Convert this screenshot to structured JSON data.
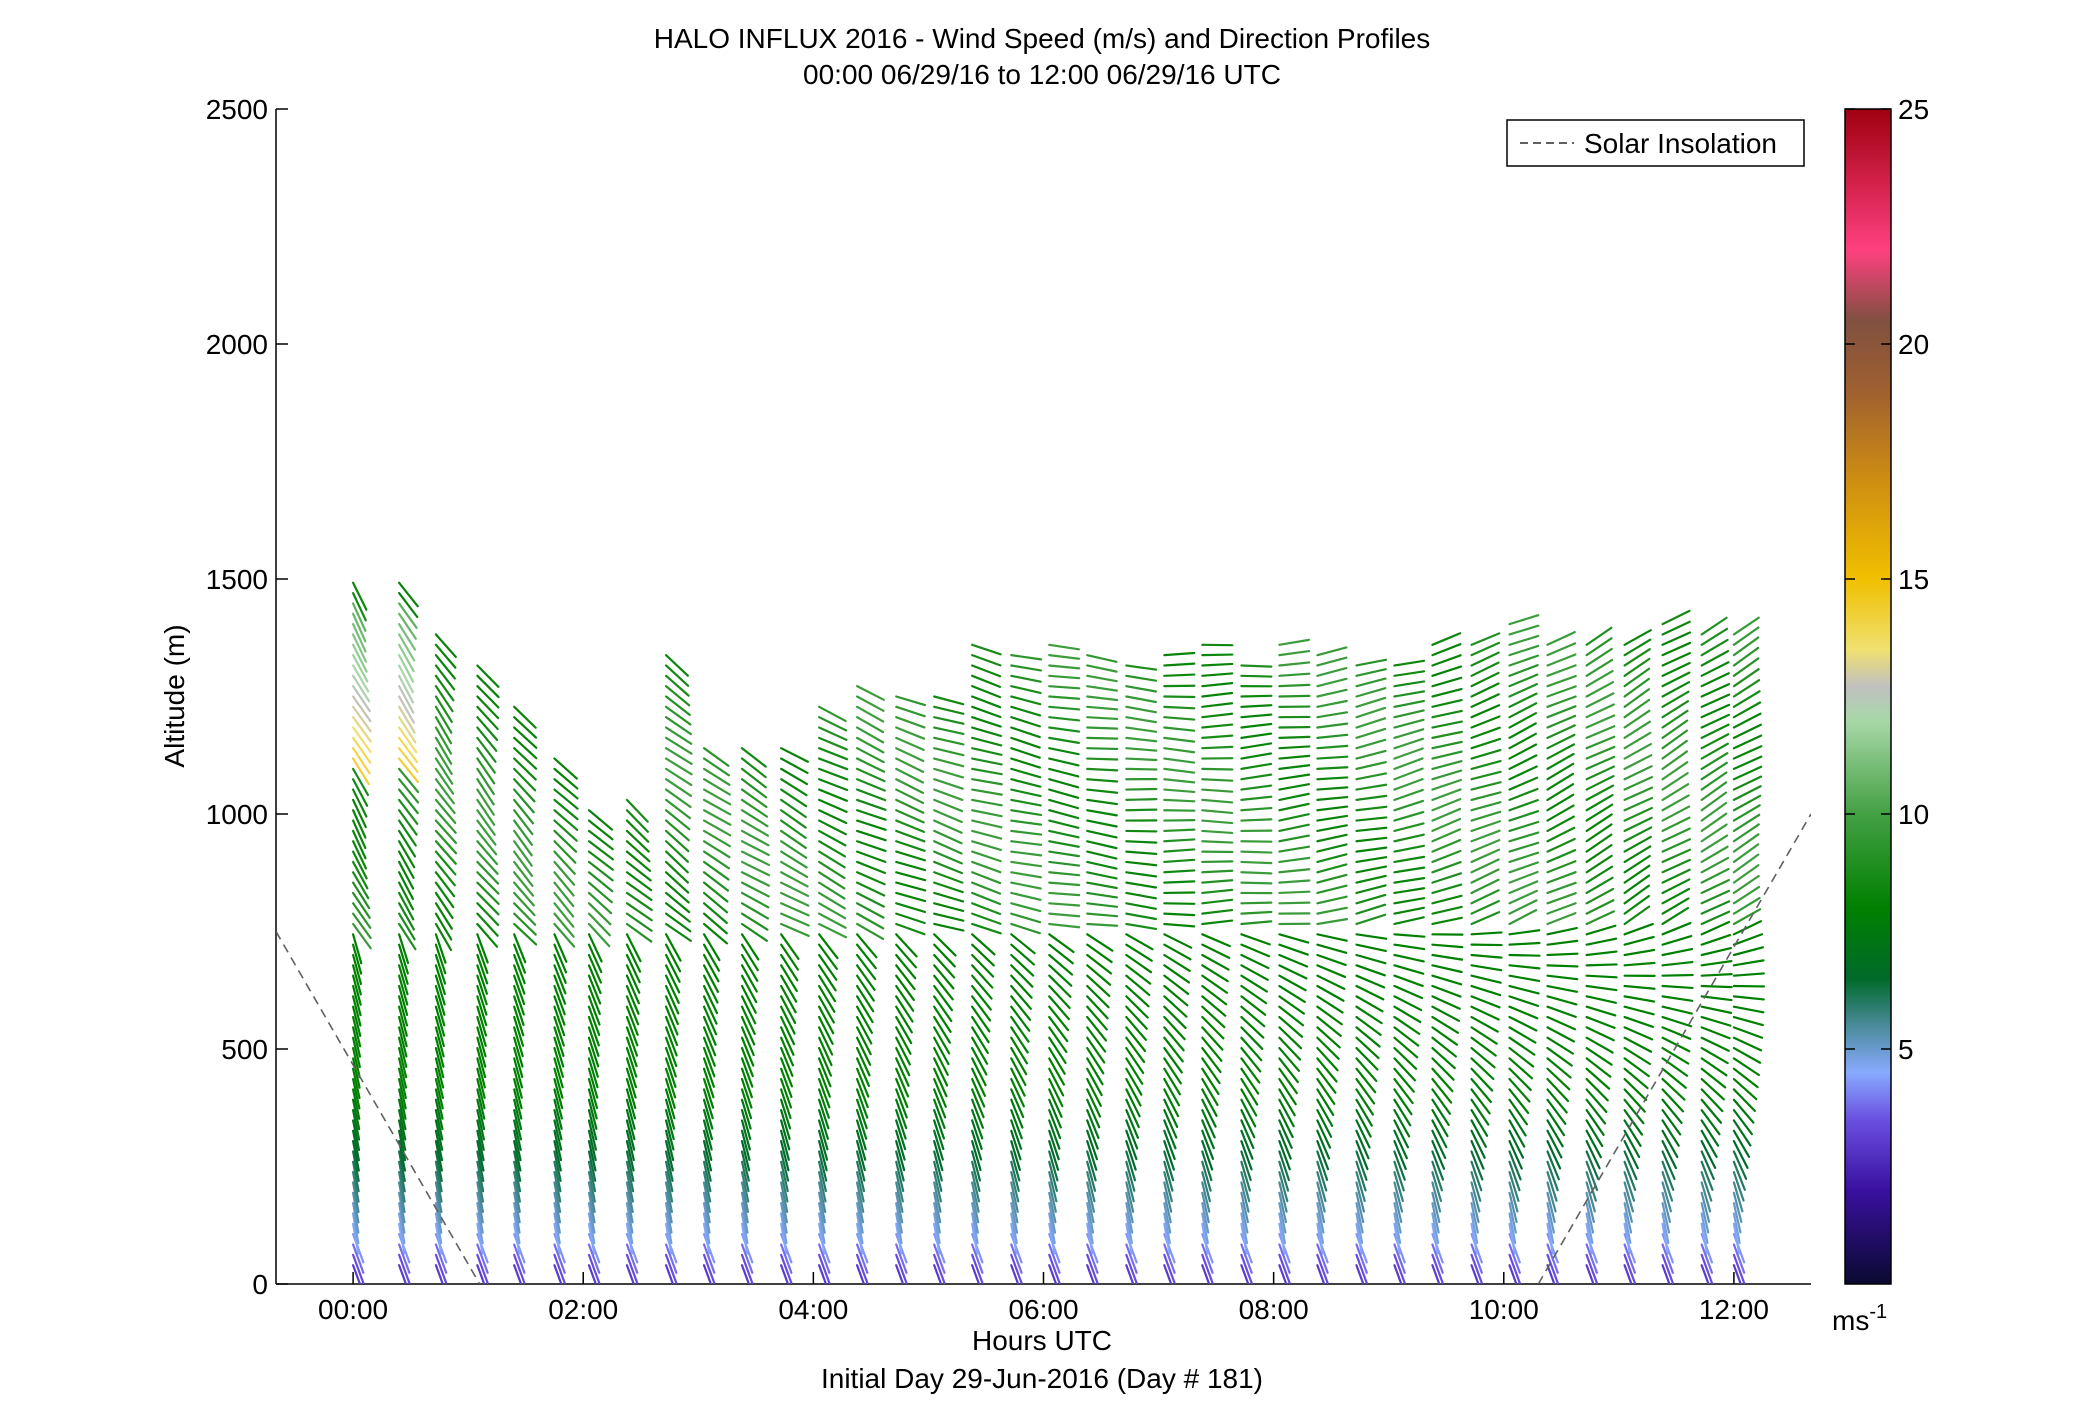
{
  "chart_data": {
    "type": "wind barb profile",
    "title": "HALO INFLUX 2016 - Wind Speed (m/s) and Direction Profiles",
    "subtitle": "00:00 06/29/16 to 12:00 06/29/16  UTC",
    "xlabel": "Hours UTC",
    "xlabel2": "Initial Day 29-Jun-2016 (Day # 181)",
    "ylabel": "Altitude (m)",
    "xlim": [
      -0.67,
      12.67
    ],
    "ylim": [
      0,
      2500
    ],
    "x_ticks": [
      {
        "value": 0,
        "label": "00:00"
      },
      {
        "value": 2,
        "label": "02:00"
      },
      {
        "value": 4,
        "label": "04:00"
      },
      {
        "value": 6,
        "label": "06:00"
      },
      {
        "value": 8,
        "label": "08:00"
      },
      {
        "value": 10,
        "label": "10:00"
      },
      {
        "value": 12,
        "label": "12:00"
      }
    ],
    "y_ticks": [
      {
        "value": 0,
        "label": "0"
      },
      {
        "value": 500,
        "label": "500"
      },
      {
        "value": 1000,
        "label": "1000"
      },
      {
        "value": 1500,
        "label": "1500"
      },
      {
        "value": 2000,
        "label": "2000"
      },
      {
        "value": 2500,
        "label": "2500"
      }
    ],
    "legend": {
      "position": "top-right",
      "label": "Solar Insolation"
    },
    "colorbar": {
      "range": [
        0,
        25
      ],
      "unit": "ms-1",
      "ticks": [
        {
          "value": 5,
          "label": "5"
        },
        {
          "value": 10,
          "label": "10"
        },
        {
          "value": 15,
          "label": "15"
        },
        {
          "value": 20,
          "label": "20"
        },
        {
          "value": 25,
          "label": "25"
        }
      ],
      "stops": [
        {
          "value": 0,
          "color": "#0a0a30"
        },
        {
          "value": 2,
          "color": "#3a10a0"
        },
        {
          "value": 3.5,
          "color": "#6a50e0"
        },
        {
          "value": 4.5,
          "color": "#88aaff"
        },
        {
          "value": 5.5,
          "color": "#4a8a9a"
        },
        {
          "value": 6.5,
          "color": "#006a2a"
        },
        {
          "value": 8,
          "color": "#008000"
        },
        {
          "value": 10,
          "color": "#44a044"
        },
        {
          "value": 12,
          "color": "#a8d8a8"
        },
        {
          "value": 12.7,
          "color": "#c0c0c0"
        },
        {
          "value": 13.5,
          "color": "#f0e070"
        },
        {
          "value": 15,
          "color": "#f0c000"
        },
        {
          "value": 17,
          "color": "#d09010"
        },
        {
          "value": 19,
          "color": "#a06030"
        },
        {
          "value": 20.5,
          "color": "#805040"
        },
        {
          "value": 22,
          "color": "#ff4080"
        },
        {
          "value": 25,
          "color": "#a00010"
        }
      ]
    },
    "solar_insolation": {
      "segments": [
        [
          [
            -0.67,
            750
          ],
          [
            1.1,
            0
          ]
        ],
        [
          [
            10.3,
            0
          ],
          [
            12.67,
            1000
          ]
        ]
      ]
    },
    "profile_times": [
      0.0,
      0.4,
      0.72,
      1.08,
      1.4,
      1.75,
      2.05,
      2.38,
      2.72,
      3.05,
      3.38,
      3.72,
      4.05,
      4.38,
      4.72,
      5.05,
      5.38,
      5.72,
      6.05,
      6.38,
      6.72,
      7.05,
      7.38,
      7.72,
      8.05,
      8.38,
      8.72,
      9.05,
      9.38,
      9.72,
      10.05,
      10.38,
      10.72,
      11.05,
      11.38,
      11.72,
      12.0
    ],
    "profile_top_altitudes": [
      1500,
      1500,
      1400,
      1320,
      1240,
      1130,
      1010,
      1040,
      1340,
      1160,
      1140,
      1160,
      1230,
      1290,
      1250,
      1260,
      1380,
      1340,
      1380,
      1350,
      1330,
      1340,
      1370,
      1330,
      1360,
      1340,
      1330,
      1330,
      1360,
      1360,
      1410,
      1370,
      1370,
      1370,
      1410,
      1400,
      1400
    ],
    "wind_profile_model": {
      "altitude_step": 22,
      "surface": {
        "speed": 3,
        "direction_from_deg": 340
      },
      "lower_layer_top": 760,
      "lower_layer_speed": 8,
      "lower_layer_direction_from_deg": 350,
      "upper_layer_speed": 9,
      "upper_layer_direction_early_deg": 330,
      "upper_layer_direction_late_deg": 240,
      "high_speed_layer": {
        "time_max": 0.5,
        "altitude_range": [
          1100,
          1450
        ],
        "speed": 14.5
      }
    }
  }
}
